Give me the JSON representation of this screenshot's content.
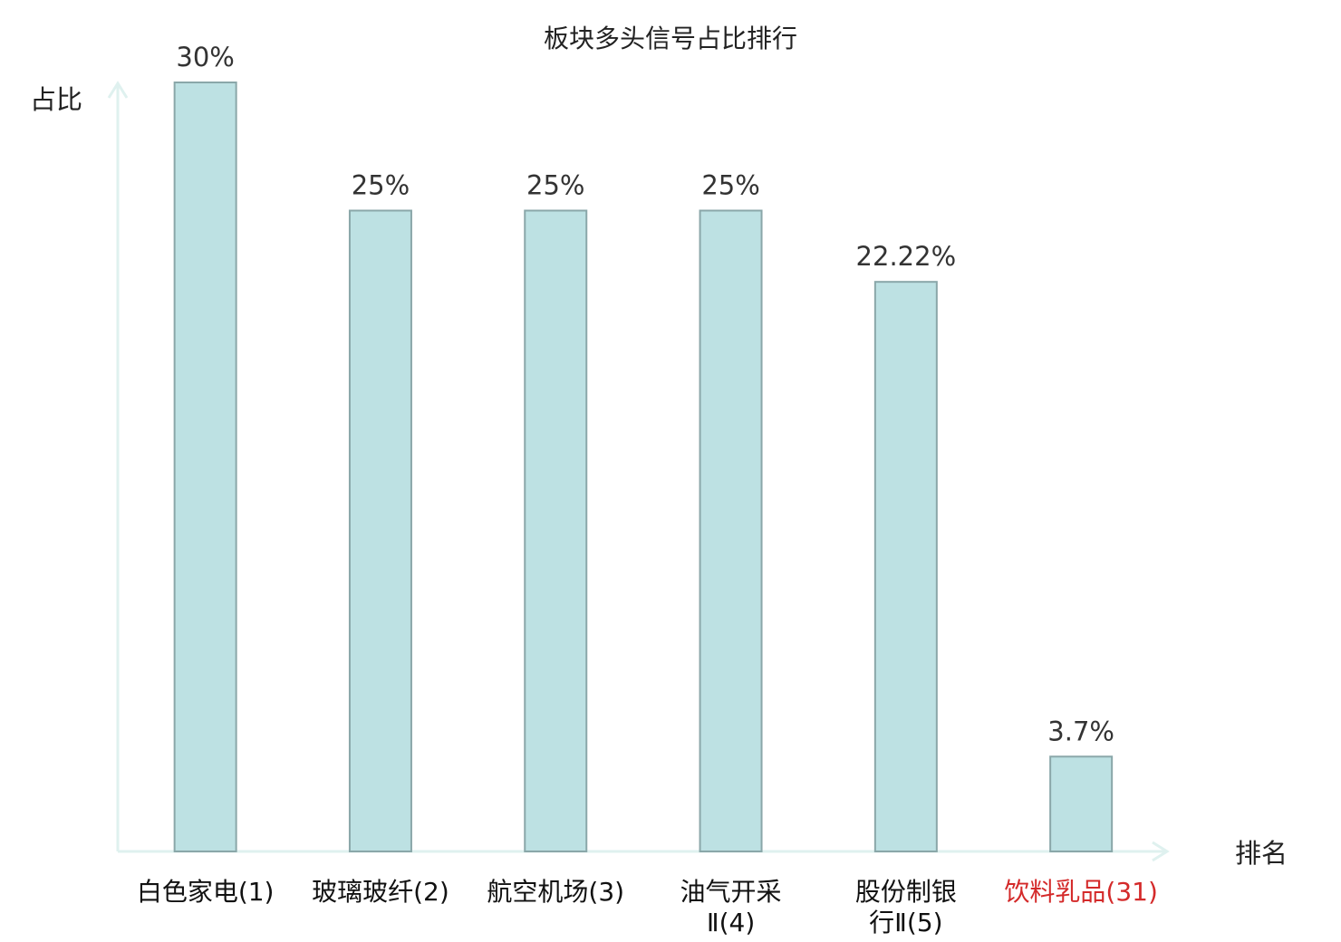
{
  "chart_data": {
    "type": "bar",
    "title": "板块多头信号占比排行",
    "ylabel": "占比",
    "xlabel": "排名",
    "ylim": [
      0,
      31
    ],
    "grid": false,
    "legend": "none",
    "categories": [
      [
        "白色家电(1)"
      ],
      [
        "玻璃玻纤(2)"
      ],
      [
        "航空机场(3)"
      ],
      [
        "油气开采",
        "Ⅱ(4)"
      ],
      [
        "股份制银",
        "行Ⅱ(5)"
      ],
      [
        "饮料乳品(31)"
      ]
    ],
    "values": [
      30,
      25,
      25,
      25,
      22.22,
      3.7
    ],
    "value_labels": [
      "30%",
      "25%",
      "25%",
      "25%",
      "22.22%",
      "3.7%"
    ],
    "highlight_index": 5
  },
  "colors": {
    "bar_fill": "#bde1e3",
    "bar_stroke": "#8aa7a9",
    "axis": "#dff1ef",
    "highlight_text": "#d42a2a"
  }
}
